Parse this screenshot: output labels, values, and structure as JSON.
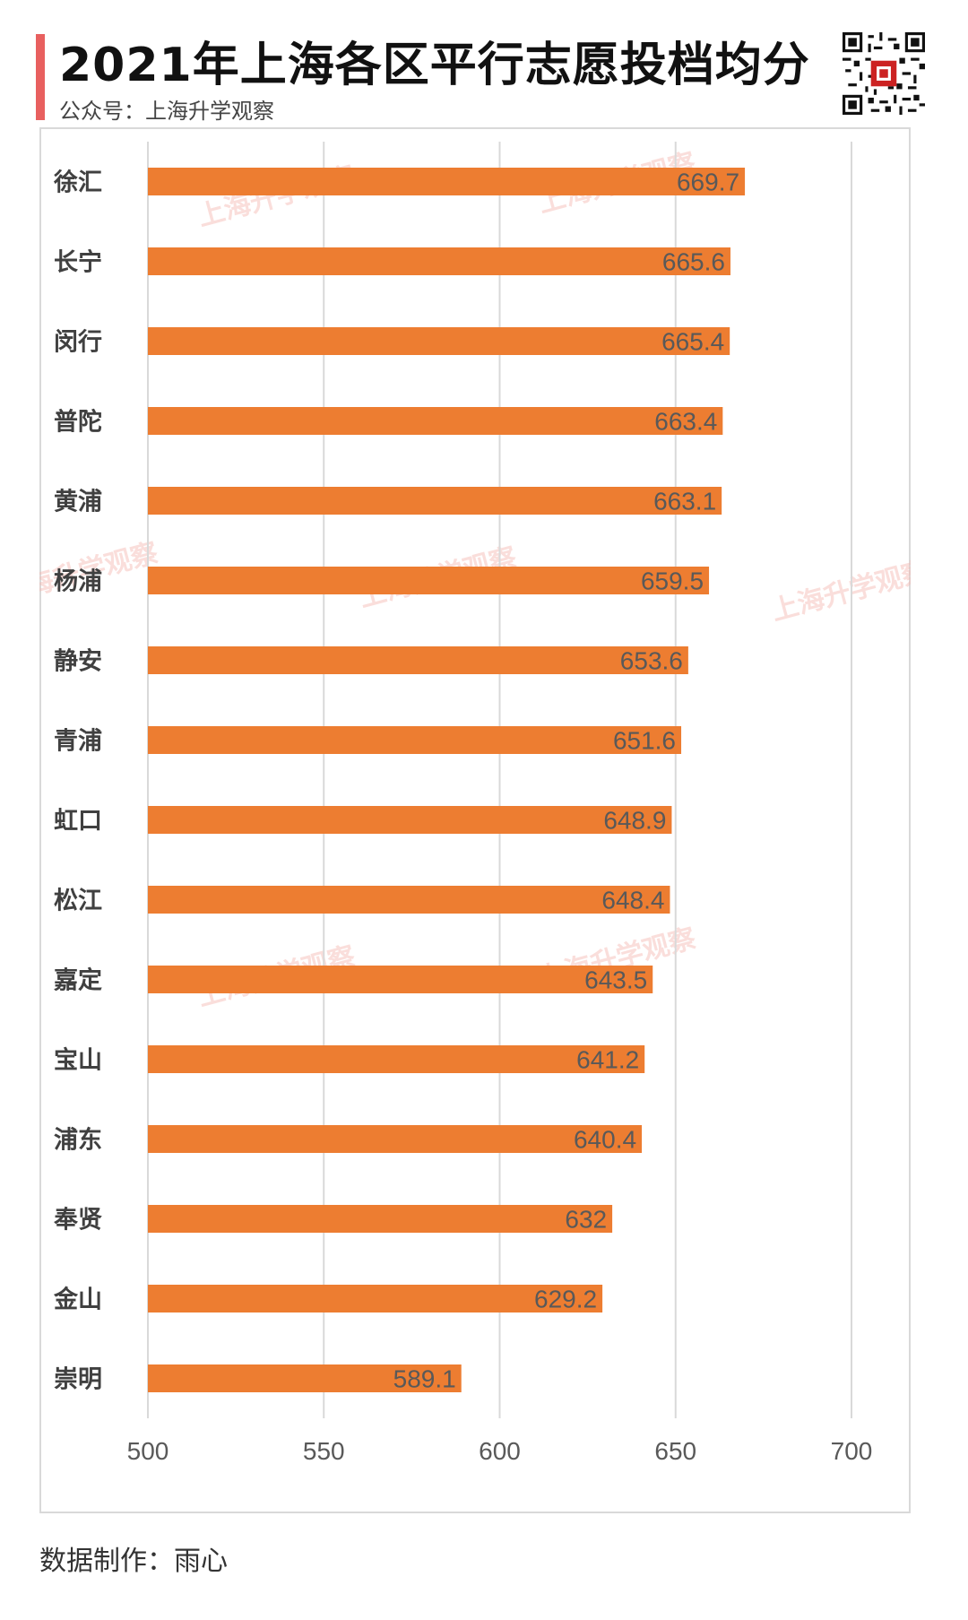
{
  "header": {
    "title": "2021年上海各区平行志愿投档均分",
    "subtitle": "公众号：上海升学观察",
    "qr_icon": "qr-code-icon"
  },
  "footer": {
    "credit": "数据制作：雨心"
  },
  "watermark": {
    "text": "上海升学观察"
  },
  "colors": {
    "bar": "#ed7d31",
    "accent": "#e8605f",
    "grid": "#d9d9d9",
    "value_label": "#595959"
  },
  "chart_data": {
    "type": "bar",
    "orientation": "horizontal",
    "categories": [
      "徐汇",
      "长宁",
      "闵行",
      "普陀",
      "黄浦",
      "杨浦",
      "静安",
      "青浦",
      "虹口",
      "松江",
      "嘉定",
      "宝山",
      "浦东",
      "奉贤",
      "金山",
      "崇明"
    ],
    "values": [
      669.7,
      665.6,
      665.4,
      663.4,
      663.1,
      659.5,
      653.6,
      651.6,
      648.9,
      648.4,
      643.5,
      641.2,
      640.4,
      632,
      629.2,
      589.1
    ],
    "value_labels": [
      "669.7",
      "665.6",
      "665.4",
      "663.4",
      "663.1",
      "659.5",
      "653.6",
      "651.6",
      "648.9",
      "648.4",
      "643.5",
      "641.2",
      "640.4",
      "632",
      "629.2",
      "589.1"
    ],
    "title": "2021年上海各区平行志愿投档均分",
    "xlabel": "",
    "ylabel": "",
    "xlim": [
      500,
      700
    ],
    "xticks": [
      500,
      550,
      600,
      650,
      700
    ],
    "grid": "vertical",
    "legend": "none"
  }
}
